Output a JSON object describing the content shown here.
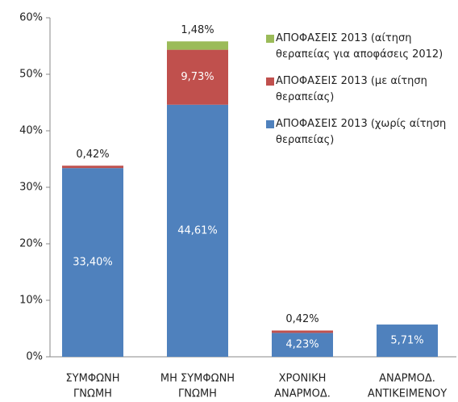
{
  "chart_data": {
    "type": "stacked_bar",
    "categories": [
      [
        "ΣΥΜΦΩΝΗ",
        "ΓΝΩΜΗ"
      ],
      [
        "ΜΗ ΣΥΜΦΩΝΗ",
        "ΓΝΩΜΗ"
      ],
      [
        "ΧΡΟΝΙΚΗ",
        "ΑΝΑΡΜΟΔ."
      ],
      [
        "ΑΝΑΡΜΟΔ.",
        "ΑΝΤΙΚΕΙΜΕΝΟΥ"
      ]
    ],
    "series": [
      {
        "name": "ΑΠΟΦΑΣΕΙΣ 2013 (χωρίς αίτηση θεραπείας)",
        "color": "#4f81bd",
        "values": [
          33.4,
          44.61,
          4.23,
          5.71
        ],
        "value_labels": [
          "33,40%",
          "44,61%",
          "4,23%",
          "5,71%"
        ]
      },
      {
        "name": "ΑΠΟΦΑΣΕΙΣ 2013 (με αίτηση θεραπείας)",
        "color": "#c0504d",
        "values": [
          0.42,
          9.73,
          0.42,
          null
        ],
        "value_labels": [
          "0,42%",
          "9,73%",
          "0,42%",
          null
        ]
      },
      {
        "name": "ΑΠΟΦΑΣΕΙΣ 2013 (αίτηση θεραπείας για αποφάσεις 2012)",
        "color": "#9bbb59",
        "values": [
          null,
          1.48,
          null,
          null
        ],
        "value_labels": [
          null,
          "1,48%",
          null,
          null
        ]
      }
    ],
    "ylim": [
      0,
      60
    ],
    "yticks": [
      {
        "value": 0,
        "label": "0%"
      },
      {
        "value": 10,
        "label": "10%"
      },
      {
        "value": 20,
        "label": "20%"
      },
      {
        "value": 30,
        "label": "30%"
      },
      {
        "value": 40,
        "label": "40%"
      },
      {
        "value": 50,
        "label": "50%"
      },
      {
        "value": 60,
        "label": "60%"
      }
    ]
  }
}
